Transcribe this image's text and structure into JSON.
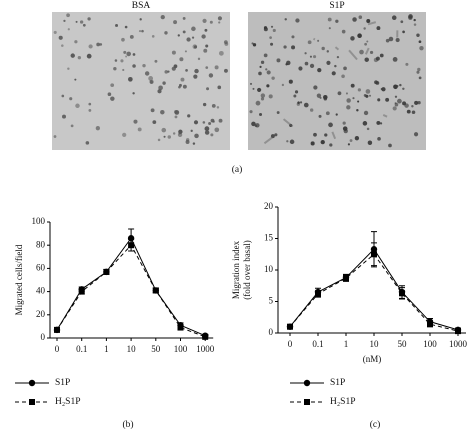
{
  "images": {
    "labels": [
      "BSA",
      "S1P"
    ],
    "caption": "(a)"
  },
  "chart_data": [
    {
      "type": "line",
      "ylabel": "Migrated cells/field",
      "caption": "(b)",
      "categories": [
        "0",
        "0.1",
        "1",
        "10",
        "50",
        "100",
        "1000"
      ],
      "ylim": [
        0,
        100
      ],
      "yticks": [
        0,
        20,
        40,
        60,
        80,
        100
      ],
      "series": [
        {
          "name": "S1P",
          "color": "#000",
          "marker": "circle",
          "line_style": "solid",
          "values": [
            7,
            42,
            57,
            86,
            41,
            11,
            2
          ],
          "errors": [
            1,
            2,
            2,
            8,
            2,
            2,
            1
          ]
        },
        {
          "name": "H₂S1P",
          "color": "#000",
          "marker": "square",
          "line_style": "dashed",
          "values": [
            7,
            40,
            57,
            80,
            41,
            9,
            1
          ],
          "errors": [
            1,
            2,
            2,
            5,
            2,
            2,
            1
          ]
        }
      ]
    },
    {
      "type": "line",
      "ylabel": [
        "Migration index",
        "(fold over basal)"
      ],
      "xlabel": "(nM)",
      "caption": "(c)",
      "categories": [
        "0",
        "0.1",
        "1",
        "10",
        "50",
        "100",
        "1000"
      ],
      "ylim": [
        0,
        20
      ],
      "yticks": [
        0,
        5,
        10,
        15,
        20
      ],
      "series": [
        {
          "name": "S1P",
          "color": "#000",
          "marker": "circle",
          "line_style": "solid",
          "values": [
            1,
            6.5,
            8.8,
            13.3,
            6.5,
            1.8,
            0.5
          ],
          "errors": [
            0.2,
            0.6,
            0.5,
            2.8,
            1,
            0.5,
            0.3
          ]
        },
        {
          "name": "H₂S1P",
          "color": "#000",
          "marker": "square",
          "line_style": "dashed",
          "values": [
            1,
            6.2,
            8.7,
            12.5,
            6.3,
            1.4,
            0.3
          ],
          "errors": [
            0.2,
            0.5,
            0.5,
            1.8,
            0.9,
            0.4,
            0.2
          ]
        }
      ]
    }
  ]
}
